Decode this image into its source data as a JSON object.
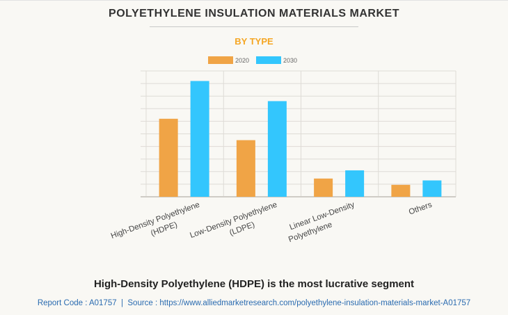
{
  "chart_data": {
    "type": "bar",
    "title": "POLYETHYLENE INSULATION MATERIALS MARKET",
    "subtitle": "BY TYPE",
    "categories": [
      [
        "High-Density Polyethylene",
        "(HDPE)"
      ],
      [
        "Low-Density Polyethylene",
        "(LDPE)"
      ],
      [
        "Linear Low-Density",
        "Polyethylene"
      ],
      [
        "Others"
      ]
    ],
    "series": [
      {
        "name": "2020",
        "color": "#f0a446",
        "values": [
          6.2,
          4.5,
          1.45,
          0.95
        ]
      },
      {
        "name": "2030",
        "color": "#33c6fd",
        "values": [
          9.2,
          7.6,
          2.1,
          1.3
        ]
      }
    ],
    "ylim": [
      0,
      10
    ],
    "grid": true,
    "legend": "top-center",
    "xlabel": "",
    "ylabel": ""
  },
  "footer": {
    "headline": "High-Density Polyethylene (HDPE) is the most lucrative segment",
    "source": "Report Code : A01757  |  Source : https://www.alliedmarketresearch.com/polyethylene-insulation-materials-market-A01757"
  }
}
